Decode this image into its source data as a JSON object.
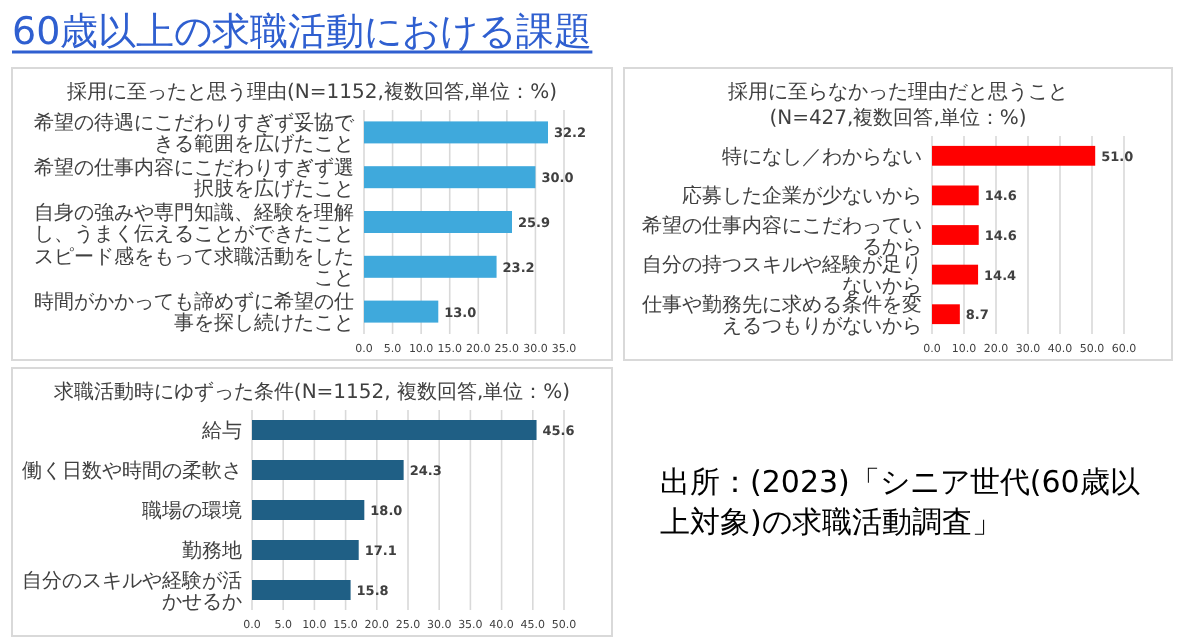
{
  "chart_data": [
    {
      "type": "other",
      "title": "60歳以上の求職活動における課題",
      "annotations": [
        "出所：(2023)「シニア世代(60歳以上対象)の求職活動調査」"
      ]
    },
    {
      "type": "bar",
      "orientation": "horizontal",
      "title": "採用に至ったと思う理由(N=1152,複数回答,単位：%)",
      "categories": [
        "希望の待遇にこだわりすぎず妥協できる範囲を広げたこと",
        "希望の仕事内容にこだわりすぎず選択肢を広げたこと",
        "自身の強みや専門知識、経験を理解し、うまく伝えることができたこと",
        "スピード感をもって求職活動をしたこと",
        "時間がかかっても諦めずに希望の仕事を探し続けたこと"
      ],
      "values": [
        32.2,
        30.0,
        25.9,
        23.2,
        13.0
      ],
      "value_labels": [
        "32.2",
        "30.0",
        "25.9",
        "23.2",
        "13.0"
      ],
      "color": "#3fa9dc",
      "xlim": [
        0,
        35
      ],
      "xticks": [
        {
          "value": 0,
          "label": "0.0"
        },
        {
          "value": 5,
          "label": "5.0"
        },
        {
          "value": 10,
          "label": "10.0"
        },
        {
          "value": 15,
          "label": "15.0"
        },
        {
          "value": 20,
          "label": "20.0"
        },
        {
          "value": 25,
          "label": "25.0"
        },
        {
          "value": 30,
          "label": "30.0"
        },
        {
          "value": 35,
          "label": "35.0"
        }
      ],
      "grid": "x"
    },
    {
      "type": "bar",
      "orientation": "horizontal",
      "title": "採用に至らなかった理由だと思うこと",
      "subtitle": "(N=427,複数回答,単位：%)",
      "categories": [
        "特になし／わからない",
        "応募した企業が少ないから",
        "希望の仕事内容にこだわっているから",
        "自分の持つスキルや経験が足りないから",
        "仕事や勤務先に求める条件を変えるつもりがないから"
      ],
      "values": [
        51.0,
        14.6,
        14.6,
        14.4,
        8.7
      ],
      "value_labels": [
        "51.0",
        "14.6",
        "14.6",
        "14.4",
        "8.7"
      ],
      "color": "#ff0000",
      "xlim": [
        0,
        60
      ],
      "xticks": [
        {
          "value": 0,
          "label": "0.0"
        },
        {
          "value": 10,
          "label": "10.0"
        },
        {
          "value": 20,
          "label": "20.0"
        },
        {
          "value": 30,
          "label": "30.0"
        },
        {
          "value": 40,
          "label": "40.0"
        },
        {
          "value": 50,
          "label": "50.0"
        },
        {
          "value": 60,
          "label": "60.0"
        }
      ],
      "grid": "x"
    },
    {
      "type": "bar",
      "orientation": "horizontal",
      "title": "求職活動時にゆずった条件(N=1152, 複数回答,単位：%)",
      "categories": [
        "給与",
        "働く日数や時間の柔軟さ",
        "職場の環境",
        "勤務地",
        "自分のスキルや経験が活かせるか"
      ],
      "values": [
        45.6,
        24.3,
        18.0,
        17.1,
        15.8
      ],
      "value_labels": [
        "45.6",
        "24.3",
        "18.0",
        "17.1",
        "15.8"
      ],
      "color": "#1f5f85",
      "xlim": [
        0,
        50
      ],
      "xticks": [
        {
          "value": 0,
          "label": "0.0"
        },
        {
          "value": 5,
          "label": "5.0"
        },
        {
          "value": 10,
          "label": "10.0"
        },
        {
          "value": 15,
          "label": "15.0"
        },
        {
          "value": 20,
          "label": "20.0"
        },
        {
          "value": 25,
          "label": "25.0"
        },
        {
          "value": 30,
          "label": "30.0"
        },
        {
          "value": 35,
          "label": "35.0"
        },
        {
          "value": 40,
          "label": "40.0"
        },
        {
          "value": 45,
          "label": "45.0"
        },
        {
          "value": 50,
          "label": "50.0"
        }
      ],
      "grid": "x"
    }
  ]
}
